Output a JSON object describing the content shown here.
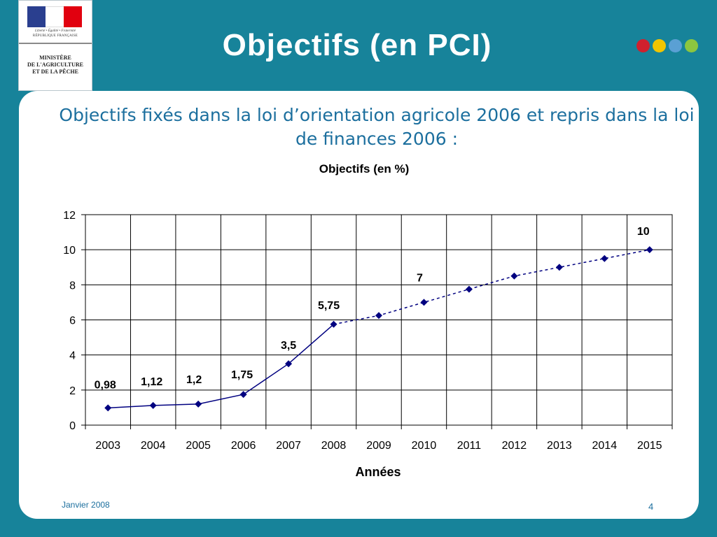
{
  "header": {
    "logo": {
      "motto": "Liberté • Égalité • Fraternité",
      "republic": "RÉPUBLIQUE FRANÇAISE",
      "ministry_lines": [
        "MINISTÈRE",
        "DE L'AGRICULTURE",
        "ET DE LA PÊCHE"
      ]
    },
    "title": "Objectifs (en PCI)",
    "dot_colors": [
      "#d0202d",
      "#f2c500",
      "#5aa0d4",
      "#8cc63f"
    ]
  },
  "subtitle": "Objectifs fixés dans la loi d’orientation agricole 2006 et repris dans la loi de finances 2006 :",
  "chart_data": {
    "type": "line",
    "title": "Objectifs (en %)",
    "xlabel": "Années",
    "ylabel": "",
    "categories": [
      "2003",
      "2004",
      "2005",
      "2006",
      "2007",
      "2008",
      "2009",
      "2010",
      "2011",
      "2012",
      "2013",
      "2014",
      "2015"
    ],
    "series": [
      {
        "values": [
          0.98,
          1.12,
          1.2,
          1.75,
          3.5,
          5.75,
          6.25,
          7,
          7.75,
          8.5,
          9,
          9.5,
          10
        ],
        "solid_through_index": 5,
        "dashed_after_index": 5,
        "color": "#000080"
      }
    ],
    "data_labels": [
      {
        "index": 0,
        "text": "0,98"
      },
      {
        "index": 1,
        "text": "1,12"
      },
      {
        "index": 2,
        "text": "1,2"
      },
      {
        "index": 3,
        "text": "1,75"
      },
      {
        "index": 4,
        "text": "3,5"
      },
      {
        "index": 5,
        "text": "5,75"
      },
      {
        "index": 7,
        "text": "7"
      },
      {
        "index": 12,
        "text": "10"
      }
    ],
    "yticks": [
      "0",
      "2",
      "4",
      "6",
      "8",
      "10",
      "12"
    ],
    "ylim": [
      0,
      12
    ],
    "grid": true,
    "legend": "none"
  },
  "footer": {
    "date": "Janvier 2008",
    "page": "4"
  }
}
